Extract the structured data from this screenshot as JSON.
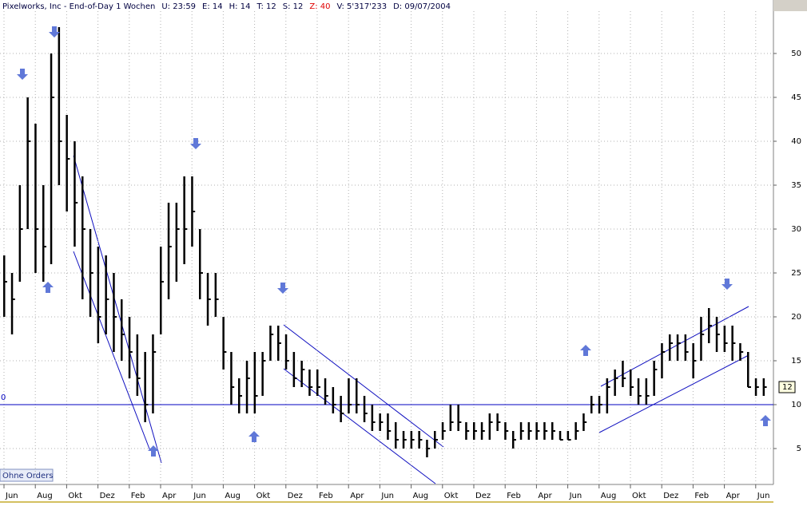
{
  "chart_data": {
    "type": "ohlc",
    "header": [
      {
        "text": "Pixelworks, Inc - End-of-Day 1 Wochen",
        "color": "#000040"
      },
      {
        "text": "U: 23:59",
        "color": "#000040"
      },
      {
        "text": "E: 14",
        "color": "#000040"
      },
      {
        "text": "H: 14",
        "color": "#000040"
      },
      {
        "text": "T: 12",
        "color": "#000040"
      },
      {
        "text": "S: 12",
        "color": "#000040"
      },
      {
        "text": "Z: 40",
        "color": "#e00000"
      },
      {
        "text": "V: 5'317'233",
        "color": "#000040"
      },
      {
        "text": "D: 09/07/2004",
        "color": "#000040"
      }
    ],
    "categories": [
      "Jun",
      null,
      null,
      null,
      "Aug",
      null,
      null,
      null,
      "Okt",
      null,
      null,
      null,
      "Dez",
      null,
      null,
      null,
      "Feb",
      null,
      null,
      null,
      "Apr",
      null,
      null,
      null,
      "Jun",
      null,
      null,
      null,
      "Aug",
      null,
      null,
      null,
      "Okt",
      null,
      null,
      null,
      "Dez",
      null,
      null,
      null,
      "Feb",
      null,
      null,
      null,
      "Apr",
      null,
      null,
      null,
      "Jun",
      null,
      null,
      null,
      "Aug",
      null,
      null,
      null,
      "Okt",
      null,
      null,
      null,
      "Dez",
      null,
      null,
      null,
      "Feb",
      null,
      null,
      null,
      "Apr",
      null,
      null,
      null,
      "Jun",
      null,
      null,
      null,
      "Aug",
      null,
      null,
      null,
      "Okt",
      null,
      null,
      null,
      "Dez",
      null,
      null,
      null,
      "Feb",
      null,
      null,
      null,
      "Apr",
      null,
      null,
      null,
      "Jun",
      null
    ],
    "high": [
      27,
      25,
      35,
      45,
      42,
      35,
      50,
      53,
      43,
      40,
      36,
      30,
      28,
      27,
      25,
      22,
      20,
      18,
      16,
      18,
      28,
      33,
      33,
      36,
      36,
      30,
      25,
      25,
      20,
      16,
      13,
      15,
      16,
      16,
      19,
      19,
      18,
      16,
      15,
      14,
      14,
      13,
      12,
      11,
      13,
      13,
      11,
      10,
      9,
      9,
      8,
      7,
      7,
      7,
      6,
      7,
      8,
      10,
      10,
      8,
      8,
      8,
      9,
      9,
      8,
      7,
      8,
      8,
      8,
      8,
      8,
      7,
      7,
      8,
      9,
      11,
      11,
      13,
      14,
      15,
      14,
      13,
      13,
      15,
      17,
      18,
      18,
      18,
      17,
      20,
      21,
      20,
      19,
      19,
      17,
      16,
      13,
      13
    ],
    "low": [
      20,
      18,
      24,
      30,
      25,
      24,
      26,
      35,
      32,
      28,
      22,
      20,
      17,
      18,
      16,
      15,
      13,
      11,
      8,
      9,
      18,
      22,
      24,
      26,
      28,
      22,
      19,
      20,
      14,
      10,
      9,
      9,
      9,
      11,
      15,
      15,
      14,
      12,
      12,
      11,
      11,
      10,
      9,
      8,
      9,
      9,
      8,
      7,
      7,
      6,
      5,
      5,
      5,
      5,
      4,
      5,
      6,
      7,
      7,
      6,
      6,
      6,
      6,
      7,
      6,
      5,
      6,
      6,
      6,
      6,
      6,
      6,
      6,
      6,
      7,
      9,
      9,
      9,
      11,
      12,
      11,
      10,
      10,
      11,
      13,
      15,
      15,
      15,
      13,
      15,
      17,
      16,
      16,
      15,
      15,
      12,
      11,
      11
    ],
    "close": [
      24,
      22,
      30,
      40,
      30,
      28,
      45,
      40,
      38,
      33,
      30,
      25,
      20,
      22,
      20,
      18,
      16,
      13,
      10,
      16,
      24,
      28,
      30,
      30,
      32,
      25,
      22,
      22,
      16,
      12,
      11,
      13,
      11,
      15,
      18,
      17,
      15,
      13,
      14,
      12,
      12,
      11,
      10,
      9,
      10,
      10,
      9,
      8,
      8,
      7,
      6,
      6,
      6,
      6,
      5,
      6,
      7,
      8,
      8,
      7,
      7,
      7,
      8,
      8,
      7,
      6,
      7,
      7,
      7,
      7,
      7,
      6,
      6,
      7,
      8,
      10,
      10,
      12,
      13,
      13,
      12,
      11,
      11,
      14,
      16,
      17,
      17,
      16,
      15,
      18,
      19,
      18,
      17,
      17,
      16,
      12,
      12,
      12
    ],
    "color": "#000000",
    "ylim": [
      1,
      55
    ],
    "yticks": [
      5,
      10,
      15,
      20,
      25,
      30,
      35,
      40,
      45,
      50
    ],
    "grid": true,
    "hline": {
      "value": 10,
      "label": "0",
      "color": "#0000c0"
    },
    "last_label": 12,
    "orders_label": "Ohne Orders"
  }
}
